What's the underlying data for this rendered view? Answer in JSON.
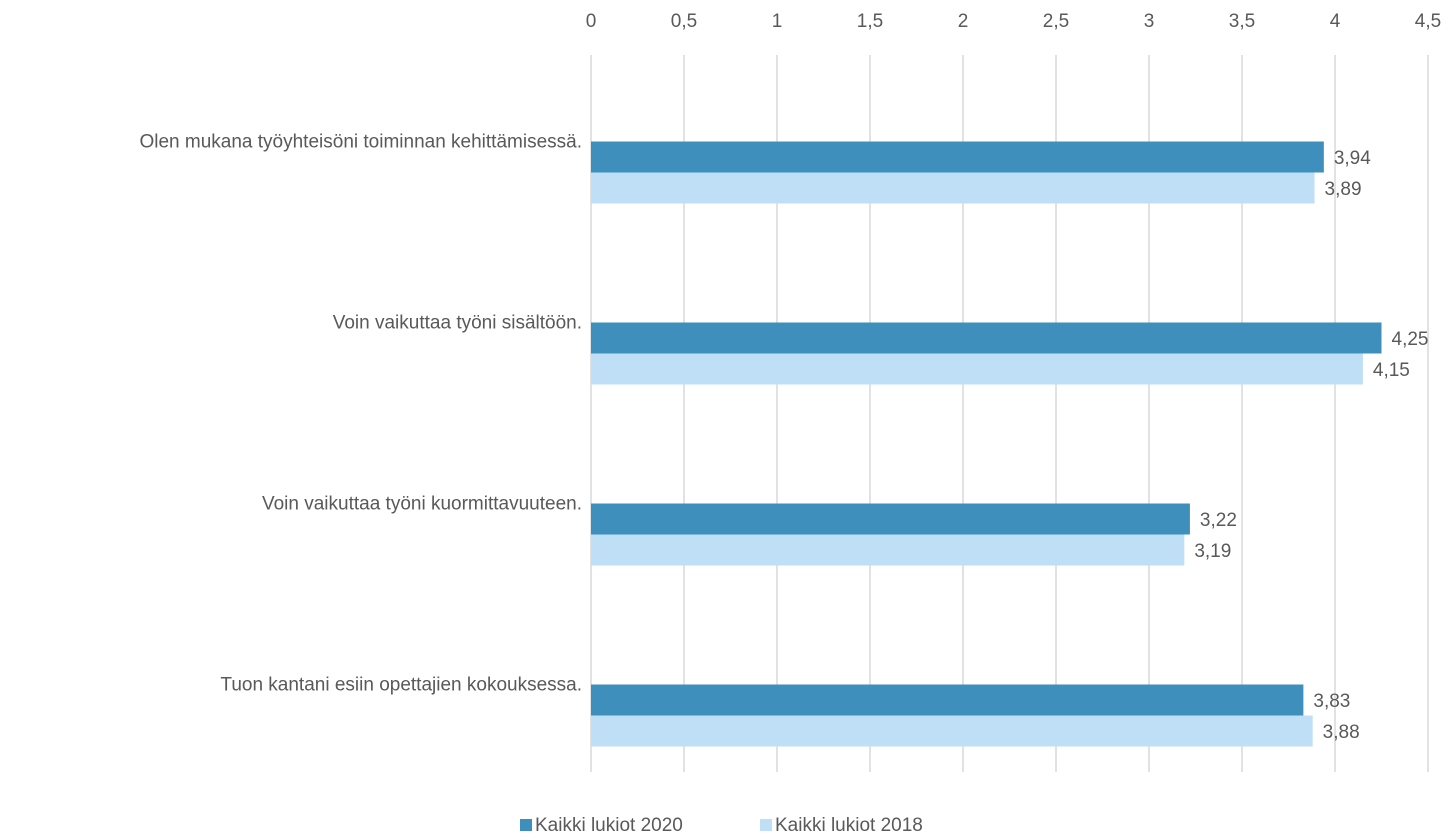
{
  "chart_data": {
    "type": "bar",
    "orientation": "horizontal",
    "categories": [
      "Olen mukana työyhteisöni toiminnan kehittämisessä.",
      "Voin vaikuttaa työni sisältöön.",
      "Voin vaikuttaa työni kuormittavuuteen.",
      "Tuon kantani esiin opettajien kokouksessa."
    ],
    "series": [
      {
        "name": "Kaikki lukiot 2020",
        "color": "#3f8fbd",
        "values": [
          3.94,
          4.25,
          3.22,
          3.83
        ],
        "value_labels": [
          "3,94",
          "4,25",
          "3,22",
          "3,83"
        ]
      },
      {
        "name": "Kaikki lukiot 2018",
        "color": "#bfdff7",
        "values": [
          3.89,
          4.15,
          3.19,
          3.88
        ],
        "value_labels": [
          "3,89",
          "4,15",
          "3,19",
          "3,88"
        ]
      }
    ],
    "xlim": [
      0,
      4.5
    ],
    "xticks": [
      0,
      {
        "value": 0.5,
        "label": "0,5"
      },
      1,
      {
        "value": 1.5,
        "label": "1,5"
      },
      2,
      {
        "value": 2.5,
        "label": "2,5"
      },
      3,
      {
        "value": 3.5,
        "label": "3,5"
      },
      4,
      {
        "value": 4.5,
        "label": "4,5"
      }
    ],
    "grid": true,
    "legend": "bottom"
  }
}
